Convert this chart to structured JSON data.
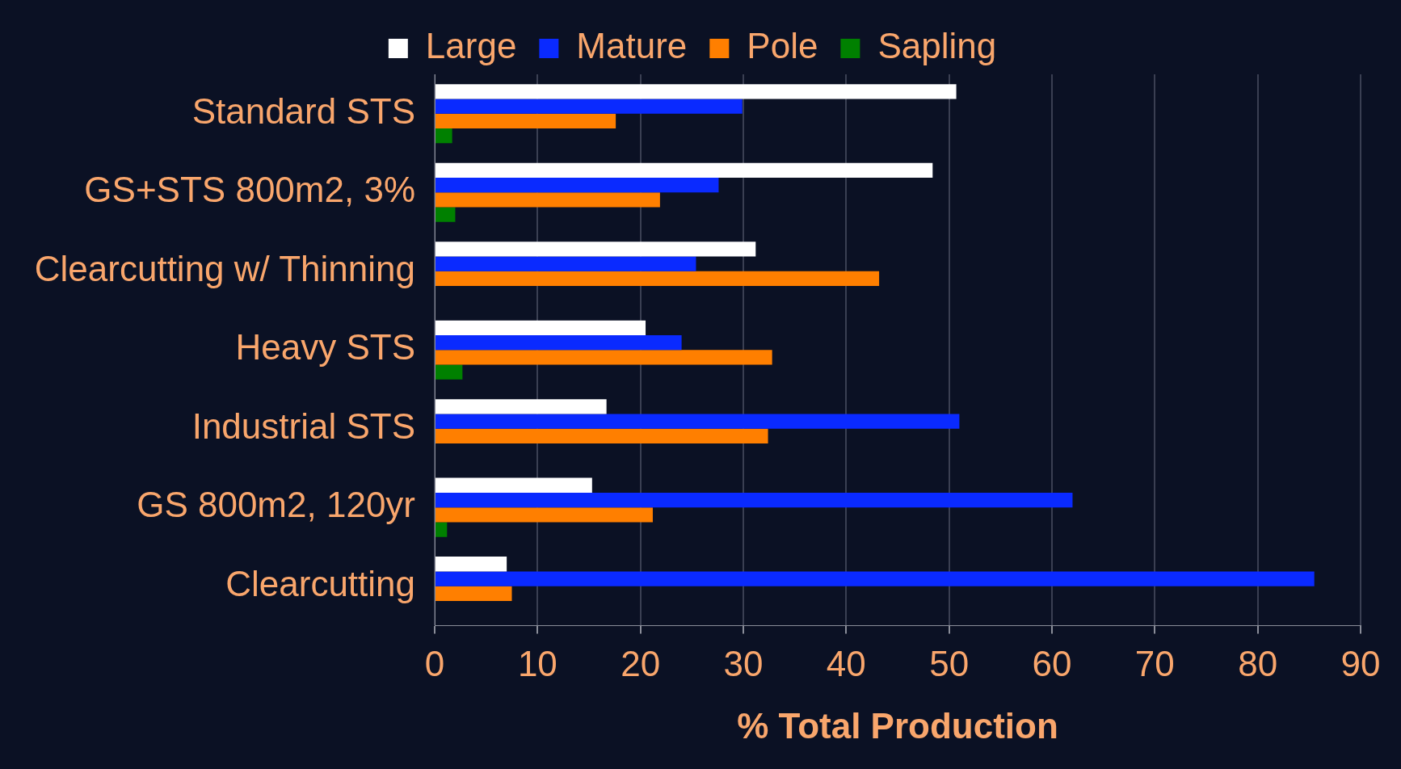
{
  "chart_data": {
    "type": "bar",
    "orientation": "horizontal",
    "xlabel": "% Total Production",
    "categories": [
      "Standard STS",
      "GS+STS 800m2, 3%",
      "Clearcutting w/ Thinning",
      "Heavy STS",
      "Industrial STS",
      "GS 800m2, 120yr",
      "Clearcutting"
    ],
    "series": [
      {
        "name": "Large",
        "color": "#ffffff",
        "values": [
          50.7,
          48.4,
          31.2,
          20.5,
          16.7,
          15.3,
          7.0
        ]
      },
      {
        "name": "Mature",
        "color": "#0a2aff",
        "values": [
          29.9,
          27.6,
          25.4,
          24.0,
          51.0,
          62.0,
          85.5
        ]
      },
      {
        "name": "Pole",
        "color": "#ff7f00",
        "values": [
          17.6,
          21.9,
          43.2,
          32.8,
          32.4,
          21.2,
          7.5
        ]
      },
      {
        "name": "Sapling",
        "color": "#008000",
        "values": [
          1.7,
          2.0,
          null,
          2.7,
          null,
          1.2,
          null
        ]
      }
    ],
    "xlim": [
      0,
      90
    ],
    "xticks": [
      0,
      10,
      20,
      30,
      40,
      50,
      60,
      70,
      80,
      90
    ],
    "grid": "x",
    "legend": "top"
  }
}
